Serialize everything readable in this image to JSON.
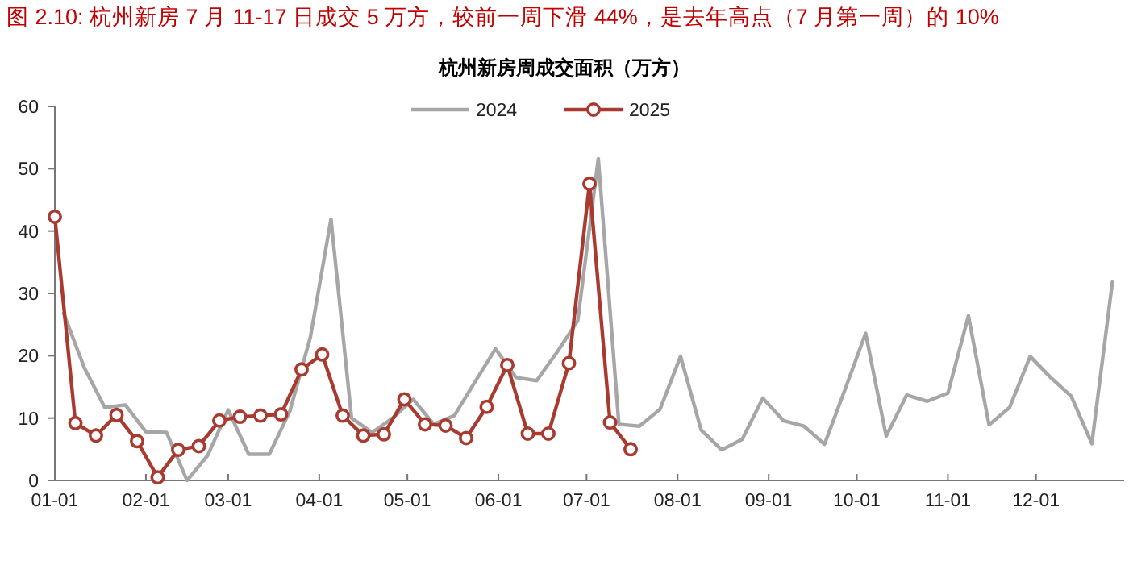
{
  "chart_data": {
    "type": "line",
    "title": "图 2.10:  杭州新房 7 月 11-17 日成交 5 万方，较前一周下滑 44%，是去年高点（7 月第一周）的 10%",
    "subtitle": "杭州新房周成交面积（万方）",
    "series": [
      {
        "name": "2024",
        "color": "#a6a6a6",
        "marker": "none",
        "x": [
          "--01-04",
          "--01-11",
          "--01-18",
          "--01-25",
          "--02-01",
          "--02-08",
          "--02-15",
          "--02-22",
          "--03-01",
          "--03-08",
          "--03-15",
          "--03-22",
          "--03-29",
          "--04-05",
          "--04-12",
          "--04-19",
          "--04-26",
          "--05-03",
          "--05-10",
          "--05-17",
          "--05-24",
          "--05-31",
          "--06-07",
          "--06-14",
          "--06-21",
          "--06-28",
          "--07-05",
          "--07-12",
          "--07-19",
          "--07-26",
          "--08-02",
          "--08-09",
          "--08-16",
          "--08-23",
          "--08-30",
          "--09-06",
          "--09-13",
          "--09-20",
          "--09-27",
          "--10-04",
          "--10-11",
          "--10-18",
          "--10-25",
          "--11-01",
          "--11-08",
          "--11-15",
          "--11-22",
          "--11-29",
          "--12-06",
          "--12-13",
          "--12-20",
          "--12-27"
        ],
        "values": [
          26.8,
          18.1,
          11.7,
          12.1,
          7.8,
          7.7,
          0,
          4,
          11.3,
          4.2,
          4.2,
          11.1,
          23,
          41.9,
          10,
          7.7,
          10,
          13,
          9,
          10.4,
          15.8,
          21.1,
          16.5,
          16,
          20.6,
          25.6,
          51.6,
          9,
          8.7,
          11.4,
          19.9,
          8.1,
          4.9,
          6.6,
          13.2,
          9.6,
          8.7,
          5.8,
          14.6,
          23.6,
          7.1,
          13.7,
          12.7,
          14,
          26.4,
          8.9,
          11.7,
          19.9,
          16.5,
          13.5,
          5.9,
          31.8
        ]
      },
      {
        "name": "2025",
        "color": "#a93a2f",
        "marker": "circle",
        "x": [
          "--01-01",
          "--01-08",
          "--01-15",
          "--01-22",
          "--01-29",
          "--02-05",
          "--02-12",
          "--02-19",
          "--02-26",
          "--03-05",
          "--03-12",
          "--03-19",
          "--03-26",
          "--04-02",
          "--04-09",
          "--04-16",
          "--04-23",
          "--04-30",
          "--05-07",
          "--05-14",
          "--05-21",
          "--05-28",
          "--06-04",
          "--06-11",
          "--06-18",
          "--06-25",
          "--07-02",
          "--07-09",
          "--07-16"
        ],
        "values": [
          42.3,
          9.2,
          7.2,
          10.5,
          6.3,
          0.5,
          4.9,
          5.5,
          9.6,
          10.2,
          10.4,
          10.6,
          17.8,
          20.2,
          10.4,
          7.2,
          7.4,
          13,
          9,
          8.8,
          6.8,
          11.8,
          18.5,
          7.5,
          7.5,
          18.8,
          47.6,
          9.3,
          5
        ]
      }
    ],
    "xlim": [
      "--01-01",
      "--12-31"
    ],
    "xticks": [
      {
        "value": "--01-01",
        "label": "01-01"
      },
      {
        "value": "--02-01",
        "label": "02-01"
      },
      {
        "value": "--03-01",
        "label": "03-01"
      },
      {
        "value": "--04-01",
        "label": "04-01"
      },
      {
        "value": "--05-01",
        "label": "05-01"
      },
      {
        "value": "--06-01",
        "label": "06-01"
      },
      {
        "value": "--07-01",
        "label": "07-01"
      },
      {
        "value": "--08-01",
        "label": "08-01"
      },
      {
        "value": "--09-01",
        "label": "09-01"
      },
      {
        "value": "--10-01",
        "label": "10-01"
      },
      {
        "value": "--11-01",
        "label": "11-01"
      },
      {
        "value": "--12-01",
        "label": "12-01"
      }
    ],
    "ylim": [
      0,
      60
    ],
    "yticks": [
      0,
      10,
      20,
      30,
      40,
      50,
      60
    ],
    "grid": false,
    "legend": "top",
    "line_style": "solid"
  }
}
